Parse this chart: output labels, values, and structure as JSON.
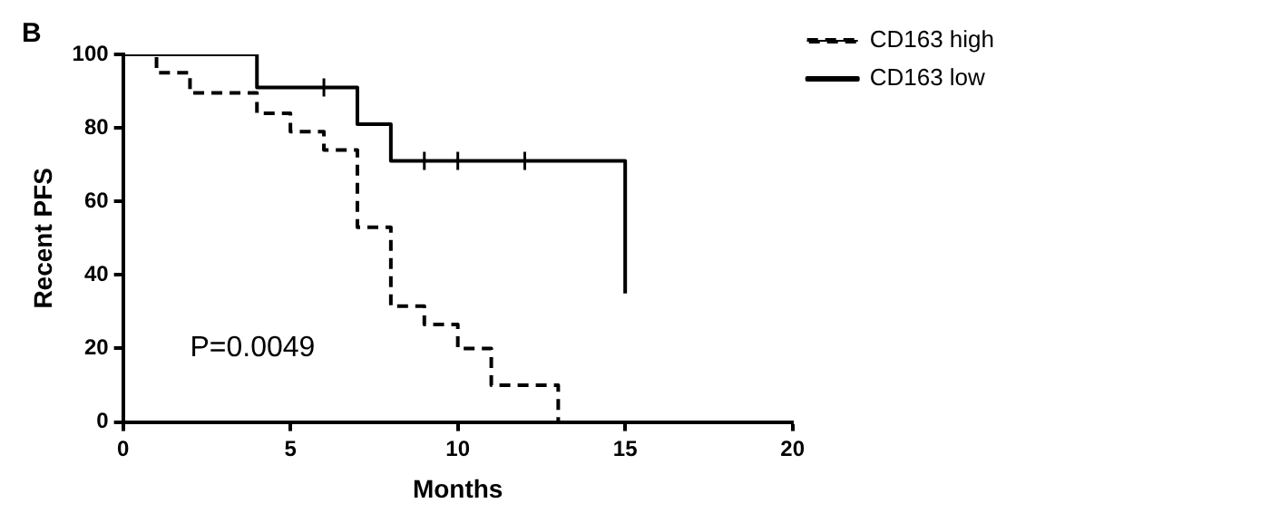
{
  "chart_data": {
    "type": "step",
    "title": "B",
    "xlabel": "Months",
    "ylabel": "Recent PFS",
    "xlim": [
      0,
      20
    ],
    "xticks": [
      0,
      5,
      10,
      15,
      20
    ],
    "ylim": [
      0,
      100
    ],
    "yticks": [
      0,
      20,
      40,
      60,
      80,
      100
    ],
    "grid": false,
    "legend": "top right",
    "annotations": [
      "P=0.0049"
    ],
    "series": [
      {
        "name": "CD163 high",
        "color": "#000000",
        "line_style": "dashed",
        "x": [
          0,
          1,
          2,
          4,
          5,
          6,
          7,
          8,
          9,
          10,
          11,
          13
        ],
        "values": [
          100,
          95,
          89.5,
          84,
          79,
          74,
          53,
          31.5,
          26.5,
          20,
          10,
          0
        ]
      },
      {
        "name": "CD163 low",
        "color": "#000000",
        "line_style": "solid",
        "x": [
          0,
          4,
          7,
          8,
          15
        ],
        "values": [
          100,
          91,
          81,
          71,
          35
        ]
      },
      {
        "type": "scatter",
        "marker": "cross",
        "color": "#000000",
        "x": [
          6,
          9,
          10,
          12
        ],
        "values": [
          91,
          71,
          71,
          71
        ]
      }
    ]
  }
}
